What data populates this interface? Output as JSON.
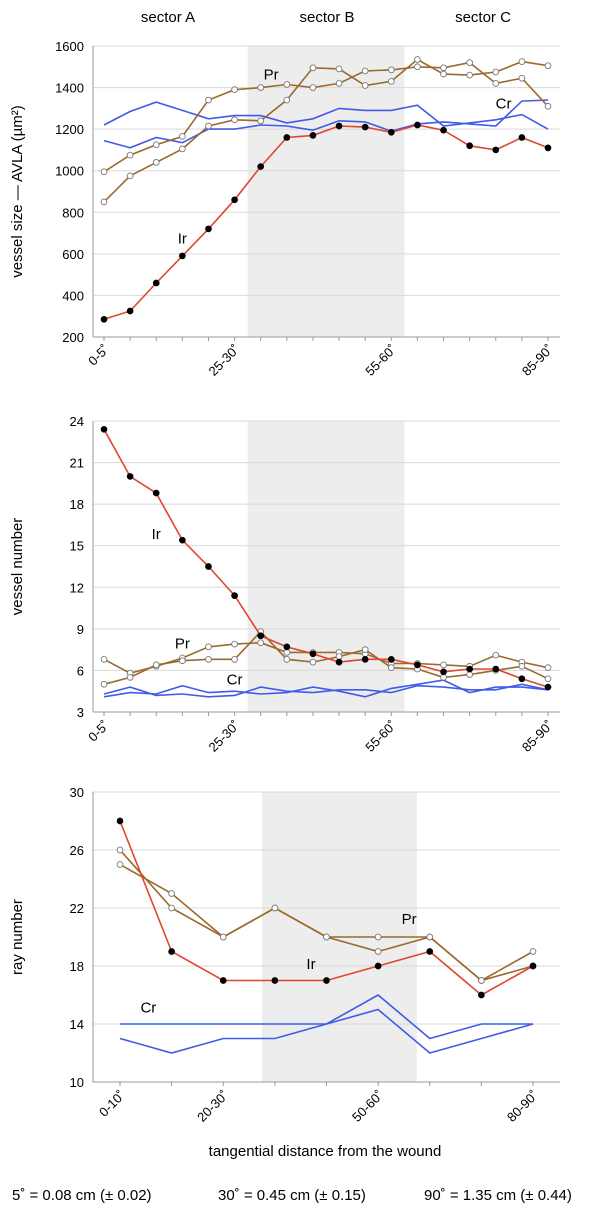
{
  "header": {
    "sectors": [
      "sector A",
      "sector B",
      "sector C"
    ]
  },
  "xlabel": "tangential distance from the wound",
  "footer": {
    "notes": [
      "5˚ = 0.08 cm (± 0.02)",
      "30˚ = 0.45 cm (± 0.15)",
      "90˚ = 1.35 cm (± 0.44)"
    ]
  },
  "colors": {
    "Ir": "#e0452f",
    "Pr": "#9a6a2e",
    "Cr": "#3f5be8",
    "shade": "#ededed"
  },
  "chart_data": [
    {
      "type": "line",
      "ylabel": "vessel size — AVLA (µm²)",
      "ylim": [
        200,
        1600
      ],
      "yticks": [
        200,
        400,
        600,
        800,
        1000,
        1200,
        1400,
        1600
      ],
      "x": [
        0,
        1,
        2,
        3,
        4,
        5,
        6,
        7,
        8,
        9,
        10,
        11,
        12,
        13,
        14,
        15,
        16,
        17
      ],
      "xtick_labels": [
        {
          "pos": 0,
          "label": "0-5˚"
        },
        {
          "pos": 5,
          "label": "25-30˚"
        },
        {
          "pos": 11,
          "label": "55-60˚"
        },
        {
          "pos": 17,
          "label": "85-90˚"
        }
      ],
      "shade_range": [
        5.5,
        11.5
      ],
      "grid": true,
      "series": [
        {
          "name": "Ir",
          "color": "Ir",
          "marker": "filled",
          "values": [
            285,
            325,
            460,
            590,
            720,
            860,
            1020,
            1160,
            1170,
            1215,
            1210,
            1185,
            1220,
            1195,
            1120,
            1100,
            1160,
            1110
          ]
        },
        {
          "name": "Pr",
          "color": "Pr",
          "marker": "open",
          "values": [
            995,
            1075,
            1125,
            1165,
            1340,
            1390,
            1400,
            1415,
            1400,
            1420,
            1480,
            1485,
            1500,
            1495,
            1520,
            1420,
            1445,
            1310
          ]
        },
        {
          "name": "",
          "color": "Pr",
          "marker": "open",
          "values": [
            850,
            975,
            1040,
            1105,
            1215,
            1245,
            1240,
            1340,
            1495,
            1490,
            1410,
            1430,
            1535,
            1465,
            1460,
            1475,
            1525,
            1505
          ]
        },
        {
          "name": "Cr",
          "color": "Cr",
          "marker": "none",
          "values": [
            1220,
            1285,
            1330,
            1290,
            1250,
            1265,
            1265,
            1230,
            1250,
            1300,
            1290,
            1290,
            1315,
            1215,
            1230,
            1245,
            1270,
            1200
          ]
        },
        {
          "name": "",
          "color": "Cr",
          "marker": "none",
          "values": [
            1145,
            1110,
            1160,
            1135,
            1200,
            1200,
            1220,
            1215,
            1195,
            1240,
            1235,
            1190,
            1225,
            1235,
            1225,
            1215,
            1335,
            1340
          ]
        }
      ],
      "labels": [
        {
          "text": "Pr",
          "x": 6.4,
          "y": 1440
        },
        {
          "text": "Cr",
          "x": 15.3,
          "y": 1300
        },
        {
          "text": "Ir",
          "x": 3.0,
          "y": 650
        }
      ]
    },
    {
      "type": "line",
      "ylabel": "vessel number",
      "ylim": [
        3,
        24
      ],
      "yticks": [
        3,
        6,
        9,
        12,
        15,
        18,
        21,
        24
      ],
      "x": [
        0,
        1,
        2,
        3,
        4,
        5,
        6,
        7,
        8,
        9,
        10,
        11,
        12,
        13,
        14,
        15,
        16,
        17
      ],
      "xtick_labels": [
        {
          "pos": 0,
          "label": "0-5˚"
        },
        {
          "pos": 5,
          "label": "25-30˚"
        },
        {
          "pos": 11,
          "label": "55-60˚"
        },
        {
          "pos": 17,
          "label": "85-90˚"
        }
      ],
      "shade_range": [
        5.5,
        11.5
      ],
      "grid": true,
      "series": [
        {
          "name": "Ir",
          "color": "Ir",
          "marker": "filled",
          "values": [
            23.4,
            20.0,
            18.8,
            15.4,
            13.5,
            11.4,
            8.5,
            7.7,
            7.2,
            6.6,
            6.8,
            6.8,
            6.4,
            5.9,
            6.1,
            6.1,
            5.4,
            4.8
          ]
        },
        {
          "name": "Pr",
          "color": "Pr",
          "marker": "open",
          "values": [
            6.8,
            5.8,
            6.3,
            6.9,
            7.7,
            7.9,
            8.0,
            7.3,
            7.3,
            7.3,
            7.2,
            6.5,
            6.5,
            6.4,
            6.3,
            7.1,
            6.6,
            6.2
          ]
        },
        {
          "name": "",
          "color": "Pr",
          "marker": "open",
          "values": [
            5.0,
            5.5,
            6.4,
            6.7,
            6.8,
            6.8,
            8.8,
            6.8,
            6.6,
            7.0,
            7.5,
            6.2,
            6.1,
            5.5,
            5.7,
            6.0,
            6.3,
            5.4
          ]
        },
        {
          "name": "Cr",
          "color": "Cr",
          "marker": "none",
          "values": [
            4.1,
            4.4,
            4.3,
            4.9,
            4.4,
            4.5,
            4.3,
            4.4,
            4.8,
            4.5,
            4.1,
            4.7,
            5.0,
            5.3,
            4.4,
            4.8,
            4.8,
            4.6
          ]
        },
        {
          "name": "",
          "color": "Cr",
          "marker": "none",
          "values": [
            4.3,
            4.8,
            4.2,
            4.3,
            4.1,
            4.2,
            4.8,
            4.5,
            4.4,
            4.6,
            4.6,
            4.4,
            4.9,
            4.8,
            4.6,
            4.6,
            5.0,
            4.6
          ]
        }
      ],
      "labels": [
        {
          "text": "Ir",
          "x": 2.0,
          "y": 15.5
        },
        {
          "text": "Pr",
          "x": 3.0,
          "y": 7.6
        },
        {
          "text": "Cr",
          "x": 5.0,
          "y": 5.0
        }
      ]
    },
    {
      "type": "line",
      "ylabel": "ray number",
      "ylim": [
        10,
        30
      ],
      "yticks": [
        10,
        14,
        18,
        22,
        26,
        30
      ],
      "x": [
        0,
        1,
        2,
        3,
        4,
        5,
        6,
        7,
        8
      ],
      "xtick_labels": [
        {
          "pos": 0,
          "label": "0-10˚"
        },
        {
          "pos": 2,
          "label": "20-30˚"
        },
        {
          "pos": 5,
          "label": "50-60˚"
        },
        {
          "pos": 8,
          "label": "80-90˚"
        }
      ],
      "shade_range": [
        2.75,
        5.75
      ],
      "grid": true,
      "series": [
        {
          "name": "Ir",
          "color": "Ir",
          "marker": "filled",
          "values": [
            28,
            19,
            17,
            17,
            17,
            18,
            19,
            16,
            18
          ]
        },
        {
          "name": "Pr",
          "color": "Pr",
          "marker": "open",
          "values": [
            26,
            22,
            20,
            22,
            20,
            19,
            20,
            17,
            18
          ]
        },
        {
          "name": "",
          "color": "Pr",
          "marker": "open",
          "values": [
            25,
            23,
            20,
            22,
            20,
            20,
            20,
            17,
            19
          ]
        },
        {
          "name": "Cr",
          "color": "Cr",
          "marker": "none",
          "values": [
            14,
            14,
            14,
            14,
            14,
            16,
            13,
            14,
            14
          ]
        },
        {
          "name": "",
          "color": "Cr",
          "marker": "none",
          "values": [
            13,
            12,
            13,
            13,
            14,
            15,
            12,
            13,
            14
          ]
        }
      ],
      "labels": [
        {
          "text": "Pr",
          "x": 5.6,
          "y": 20.9
        },
        {
          "text": "Ir",
          "x": 3.7,
          "y": 17.8
        },
        {
          "text": "Cr",
          "x": 0.55,
          "y": 14.8
        }
      ]
    }
  ]
}
